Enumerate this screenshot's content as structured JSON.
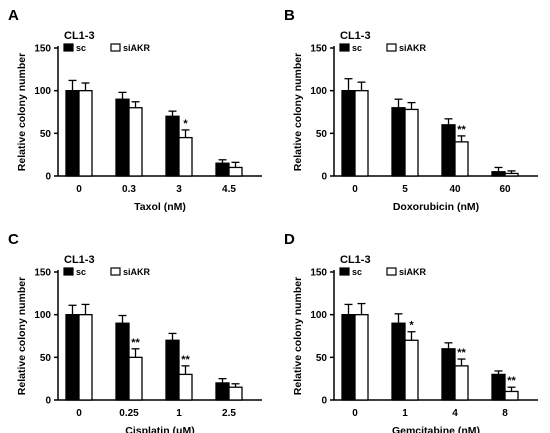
{
  "series_names": [
    "sc",
    "siAKR"
  ],
  "colors": {
    "sc": "#000000",
    "siAKR": "#ffffff",
    "stroke": "#000000"
  },
  "chart_data": [
    {
      "type": "bar",
      "panel": "A",
      "cell_line": "CL1-3",
      "xlabel": "Taxol (nM)",
      "ylabel": "Relative colony number",
      "ylim": [
        0,
        150
      ],
      "yticks": [
        0,
        50,
        100,
        150
      ],
      "categories": [
        "0",
        "0.3",
        "3",
        "4.5"
      ],
      "series": [
        {
          "name": "sc",
          "values": [
            100,
            90,
            70,
            15
          ],
          "errors": [
            12,
            8,
            6,
            4
          ]
        },
        {
          "name": "siAKR",
          "values": [
            100,
            80,
            45,
            10
          ],
          "errors": [
            9,
            7,
            9,
            6
          ]
        }
      ],
      "significance": [
        {
          "category": "3",
          "series": "siAKR",
          "label": "*"
        }
      ]
    },
    {
      "type": "bar",
      "panel": "B",
      "cell_line": "CL1-3",
      "xlabel": "Doxorubicin (nM)",
      "ylabel": "Relative colony number",
      "ylim": [
        0,
        150
      ],
      "yticks": [
        0,
        50,
        100,
        150
      ],
      "categories": [
        "0",
        "5",
        "40",
        "60"
      ],
      "series": [
        {
          "name": "sc",
          "values": [
            100,
            80,
            60,
            5
          ],
          "errors": [
            14,
            10,
            7,
            5
          ]
        },
        {
          "name": "siAKR",
          "values": [
            100,
            78,
            40,
            3
          ],
          "errors": [
            10,
            8,
            7,
            3
          ]
        }
      ],
      "significance": [
        {
          "category": "40",
          "series": "siAKR",
          "label": "**"
        }
      ]
    },
    {
      "type": "bar",
      "panel": "C",
      "cell_line": "CL1-3",
      "xlabel": "Cisplatin (μM)",
      "ylabel": "Relative colony number",
      "ylim": [
        0,
        150
      ],
      "yticks": [
        0,
        50,
        100,
        150
      ],
      "categories": [
        "0",
        "0.25",
        "1",
        "2.5"
      ],
      "series": [
        {
          "name": "sc",
          "values": [
            100,
            90,
            70,
            20
          ],
          "errors": [
            11,
            9,
            8,
            5
          ]
        },
        {
          "name": "siAKR",
          "values": [
            100,
            50,
            30,
            15
          ],
          "errors": [
            12,
            10,
            10,
            4
          ]
        }
      ],
      "significance": [
        {
          "category": "0.25",
          "series": "siAKR",
          "label": "**"
        },
        {
          "category": "1",
          "series": "siAKR",
          "label": "**"
        }
      ]
    },
    {
      "type": "bar",
      "panel": "D",
      "cell_line": "CL1-3",
      "xlabel": "Gemcitabine (nM)",
      "ylabel": "Relative colony number",
      "ylim": [
        0,
        150
      ],
      "yticks": [
        0,
        50,
        100,
        150
      ],
      "categories": [
        "0",
        "1",
        "4",
        "8"
      ],
      "series": [
        {
          "name": "sc",
          "values": [
            100,
            90,
            60,
            30
          ],
          "errors": [
            12,
            11,
            7,
            4
          ]
        },
        {
          "name": "siAKR",
          "values": [
            100,
            70,
            40,
            10
          ],
          "errors": [
            13,
            10,
            8,
            5
          ]
        }
      ],
      "significance": [
        {
          "category": "1",
          "series": "siAKR",
          "label": "*"
        },
        {
          "category": "4",
          "series": "siAKR",
          "label": "**"
        },
        {
          "category": "8",
          "series": "siAKR",
          "label": "**"
        }
      ]
    }
  ]
}
